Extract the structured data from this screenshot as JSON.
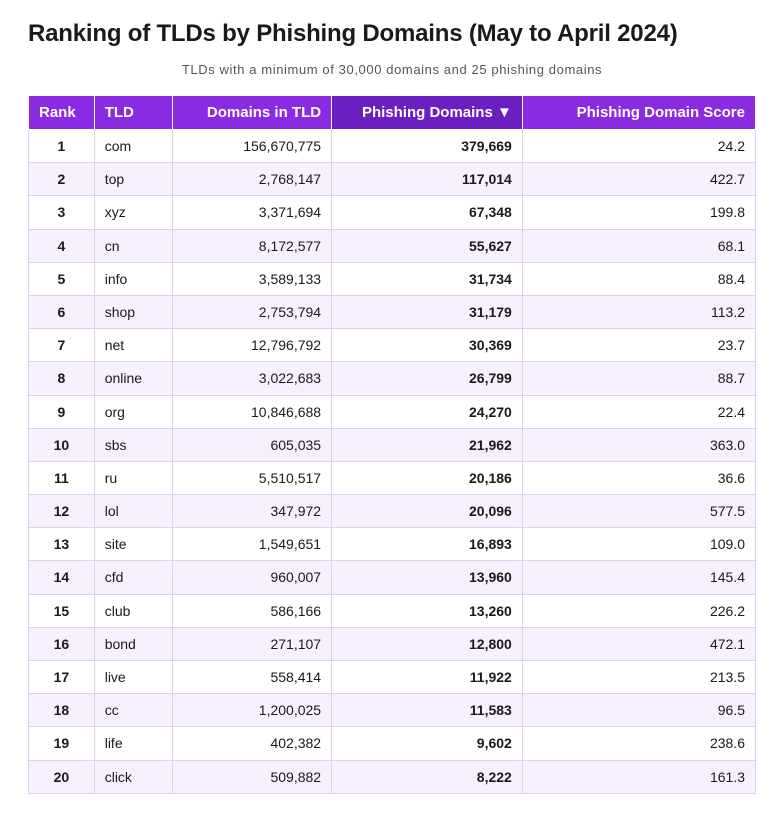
{
  "title": "Ranking of TLDs by Phishing Domains (May to April 2024)",
  "subtitle": "TLDs with a minimum of 30,000 domains and 25 phishing domains",
  "colors": {
    "header_bg": "#8a2be2",
    "header_sorted_bg": "#6a1fc0",
    "header_text": "#ffffff",
    "row_alt_bg": "#f7f0fd",
    "border": "#e0d0f0"
  },
  "table": {
    "columns": [
      {
        "key": "rank",
        "label": "Rank",
        "class": "col-rank"
      },
      {
        "key": "tld",
        "label": "TLD",
        "class": "col-tld"
      },
      {
        "key": "domains",
        "label": "Domains in TLD",
        "class": "col-domains"
      },
      {
        "key": "phish",
        "label": "Phishing Domains ▼",
        "class": "col-phish",
        "sorted": true
      },
      {
        "key": "score",
        "label": "Phishing Domain Score",
        "class": "col-score"
      }
    ],
    "rows": [
      {
        "rank": "1",
        "tld": "com",
        "domains": "156,670,775",
        "phish": "379,669",
        "score": "24.2"
      },
      {
        "rank": "2",
        "tld": "top",
        "domains": "2,768,147",
        "phish": "117,014",
        "score": "422.7"
      },
      {
        "rank": "3",
        "tld": "xyz",
        "domains": "3,371,694",
        "phish": "67,348",
        "score": "199.8"
      },
      {
        "rank": "4",
        "tld": "cn",
        "domains": "8,172,577",
        "phish": "55,627",
        "score": "68.1"
      },
      {
        "rank": "5",
        "tld": "info",
        "domains": "3,589,133",
        "phish": "31,734",
        "score": "88.4"
      },
      {
        "rank": "6",
        "tld": "shop",
        "domains": "2,753,794",
        "phish": "31,179",
        "score": "113.2"
      },
      {
        "rank": "7",
        "tld": "net",
        "domains": "12,796,792",
        "phish": "30,369",
        "score": "23.7"
      },
      {
        "rank": "8",
        "tld": "online",
        "domains": "3,022,683",
        "phish": "26,799",
        "score": "88.7"
      },
      {
        "rank": "9",
        "tld": "org",
        "domains": "10,846,688",
        "phish": "24,270",
        "score": "22.4"
      },
      {
        "rank": "10",
        "tld": "sbs",
        "domains": "605,035",
        "phish": "21,962",
        "score": "363.0"
      },
      {
        "rank": "11",
        "tld": "ru",
        "domains": "5,510,517",
        "phish": "20,186",
        "score": "36.6"
      },
      {
        "rank": "12",
        "tld": "lol",
        "domains": "347,972",
        "phish": "20,096",
        "score": "577.5"
      },
      {
        "rank": "13",
        "tld": "site",
        "domains": "1,549,651",
        "phish": "16,893",
        "score": "109.0"
      },
      {
        "rank": "14",
        "tld": "cfd",
        "domains": "960,007",
        "phish": "13,960",
        "score": "145.4"
      },
      {
        "rank": "15",
        "tld": "club",
        "domains": "586,166",
        "phish": "13,260",
        "score": "226.2"
      },
      {
        "rank": "16",
        "tld": "bond",
        "domains": "271,107",
        "phish": "12,800",
        "score": "472.1"
      },
      {
        "rank": "17",
        "tld": "live",
        "domains": "558,414",
        "phish": "11,922",
        "score": "213.5"
      },
      {
        "rank": "18",
        "tld": "cc",
        "domains": "1,200,025",
        "phish": "11,583",
        "score": "96.5"
      },
      {
        "rank": "19",
        "tld": "life",
        "domains": "402,382",
        "phish": "9,602",
        "score": "238.6"
      },
      {
        "rank": "20",
        "tld": "click",
        "domains": "509,882",
        "phish": "8,222",
        "score": "161.3"
      }
    ]
  }
}
